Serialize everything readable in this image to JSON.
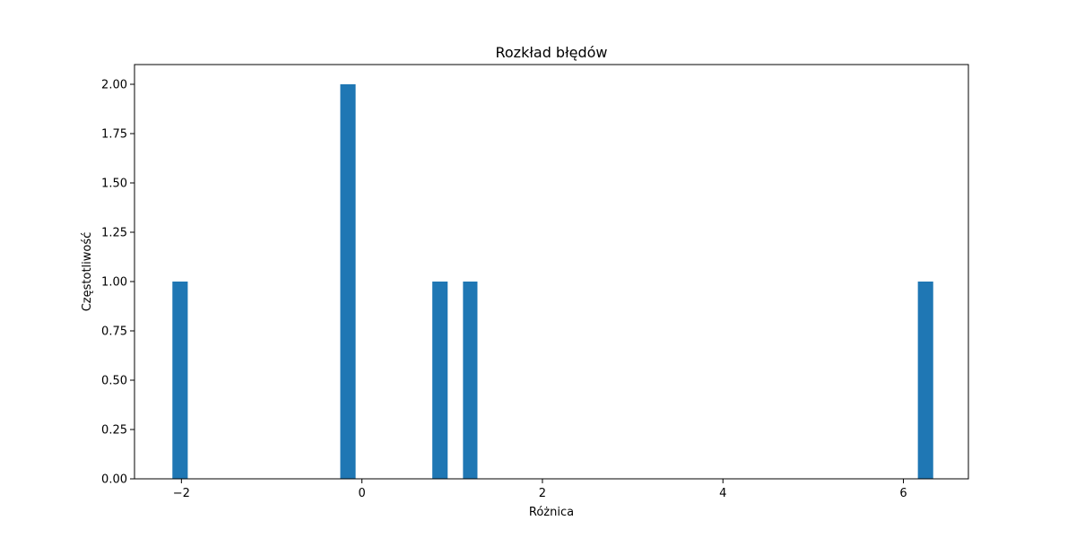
{
  "chart_data": {
    "type": "bar",
    "title": "Rozkład błędów",
    "xlabel": "Różnica",
    "ylabel": "Częstotliwość",
    "xlim": [
      -2.52,
      6.72
    ],
    "ylim": [
      0,
      2.1
    ],
    "xticks": [
      {
        "value": -2,
        "label": "−2"
      },
      {
        "value": 0,
        "label": "0"
      },
      {
        "value": 2,
        "label": "2"
      },
      {
        "value": 4,
        "label": "4"
      },
      {
        "value": 6,
        "label": "6"
      }
    ],
    "yticks": [
      {
        "value": 0,
        "label": "0.00"
      },
      {
        "value": 0.25,
        "label": "0.25"
      },
      {
        "value": 0.5,
        "label": "0.50"
      },
      {
        "value": 0.75,
        "label": "0.75"
      },
      {
        "value": 1.0,
        "label": "1.00"
      },
      {
        "value": 1.25,
        "label": "1.25"
      },
      {
        "value": 1.5,
        "label": "1.50"
      },
      {
        "value": 1.75,
        "label": "1.75"
      },
      {
        "value": 2.0,
        "label": "2.00"
      }
    ],
    "bin_width": 0.168,
    "bars": [
      {
        "x_left": -2.1,
        "x_right": -1.93,
        "value": 1
      },
      {
        "x_left": -0.24,
        "x_right": -0.07,
        "value": 2
      },
      {
        "x_left": 0.78,
        "x_right": 0.95,
        "value": 1
      },
      {
        "x_left": 1.12,
        "x_right": 1.28,
        "value": 1
      },
      {
        "x_left": 6.16,
        "x_right": 6.33,
        "value": 1
      }
    ],
    "grid": false,
    "colors": {
      "bar": "#1f77b4",
      "axis": "#000000",
      "background": "#ffffff"
    }
  }
}
